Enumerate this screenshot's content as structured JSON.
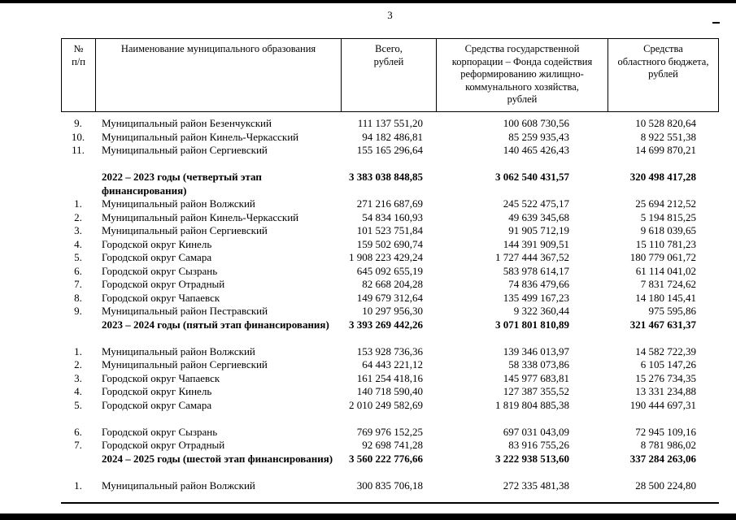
{
  "page": {
    "number": "3"
  },
  "table": {
    "headers": [
      "№\nп/п",
      "Наименование муниципального образования",
      "Всего,\nрублей",
      "Средства государственной\nкорпорации – Фонда содействия\nреформированию жилищно-\nкоммунального хозяйства,\nрублей",
      "Средства\nобластного бюджета,\nрублей"
    ],
    "rows": [
      {
        "type": "data",
        "num": "9.",
        "name": "Муниципальный район Безенчукский",
        "total": "111 137 551,20",
        "fund": "100 608 730,56",
        "budget": "10 528 820,64"
      },
      {
        "type": "data",
        "num": "10.",
        "name": "Муниципальный район Кинель-Черкасский",
        "total": "94 182 486,81",
        "fund": "85 259 935,43",
        "budget": "8 922 551,38"
      },
      {
        "type": "data",
        "num": "11.",
        "name": "Муниципальный район Сергиевский",
        "total": "155 165 296,64",
        "fund": "140 465 426,43",
        "budget": "14 699 870,21"
      },
      {
        "type": "blank"
      },
      {
        "type": "subtotal",
        "num": "",
        "name": "2022 – 2023 годы (четвертый этап финансирования)",
        "total": "3 383 038 848,85",
        "fund": "3 062 540 431,57",
        "budget": "320 498 417,28"
      },
      {
        "type": "data",
        "num": "1.",
        "name": "Муниципальный район Волжский",
        "total": "271 216 687,69",
        "fund": "245 522 475,17",
        "budget": "25 694 212,52"
      },
      {
        "type": "data",
        "num": "2.",
        "name": "Муниципальный район Кинель-Черкасский",
        "total": "54 834 160,93",
        "fund": "49 639 345,68",
        "budget": "5 194 815,25"
      },
      {
        "type": "data",
        "num": "3.",
        "name": "Муниципальный район Сергиевский",
        "total": "101 523 751,84",
        "fund": "91 905 712,19",
        "budget": "9 618 039,65"
      },
      {
        "type": "data",
        "num": "4.",
        "name": "Городской округ Кинель",
        "total": "159 502 690,74",
        "fund": "144 391 909,51",
        "budget": "15 110 781,23"
      },
      {
        "type": "data",
        "num": "5.",
        "name": "Городской округ Самара",
        "total": "1 908 223 429,24",
        "fund": "1 727 444 367,52",
        "budget": "180 779 061,72"
      },
      {
        "type": "data",
        "num": "6.",
        "name": "Городской округ Сызрань",
        "total": "645 092 655,19",
        "fund": "583 978 614,17",
        "budget": "61 114 041,02"
      },
      {
        "type": "data",
        "num": "7.",
        "name": "Городской округ Отрадный",
        "total": "82 668 204,28",
        "fund": "74 836 479,66",
        "budget": "7 831 724,62"
      },
      {
        "type": "data",
        "num": "8.",
        "name": "Городской округ Чапаевск",
        "total": "149 679 312,64",
        "fund": "135 499 167,23",
        "budget": "14 180 145,41"
      },
      {
        "type": "data",
        "num": "9.",
        "name": "Муниципальный район Пестравский",
        "total": "10 297 956,30",
        "fund": "9 322 360,44",
        "budget": "975 595,86"
      },
      {
        "type": "subtotal",
        "num": "",
        "name": "2023 – 2024 годы (пятый этап финансирования)",
        "total": "3 393 269 442,26",
        "fund": "3 071 801 810,89",
        "budget": "321 467 631,37"
      },
      {
        "type": "blank"
      },
      {
        "type": "data",
        "num": "1.",
        "name": "Муниципальный район Волжский",
        "total": "153 928 736,36",
        "fund": "139 346 013,97",
        "budget": "14 582 722,39"
      },
      {
        "type": "data",
        "num": "2.",
        "name": "Муниципальный район Сергиевский",
        "total": "64 443 221,12",
        "fund": "58 338 073,86",
        "budget": "6 105 147,26"
      },
      {
        "type": "data",
        "num": "3.",
        "name": "Городской округ Чапаевск",
        "total": "161 254 418,16",
        "fund": "145 977 683,81",
        "budget": "15 276 734,35"
      },
      {
        "type": "data",
        "num": "4.",
        "name": "Городской округ Кинель",
        "total": "140 718 590,40",
        "fund": "127 387 355,52",
        "budget": "13 331 234,88"
      },
      {
        "type": "data",
        "num": "5.",
        "name": "Городской округ Самара",
        "total": "2 010 249 582,69",
        "fund": "1 819 804 885,38",
        "budget": "190 444 697,31"
      },
      {
        "type": "blank"
      },
      {
        "type": "data",
        "num": "6.",
        "name": "Городской округ Сызрань",
        "total": "769 976 152,25",
        "fund": "697 031 043,09",
        "budget": "72 945 109,16"
      },
      {
        "type": "data",
        "num": "7.",
        "name": "Городской округ Отрадный",
        "total": "92 698 741,28",
        "fund": "83 916 755,26",
        "budget": "8 781 986,02"
      },
      {
        "type": "subtotal",
        "num": "",
        "name": "2024 – 2025 годы (шестой этап финансирования)",
        "total": "3 560 222 776,66",
        "fund": "3 222 938 513,60",
        "budget": "337 284 263,06"
      },
      {
        "type": "blank"
      },
      {
        "type": "data",
        "num": "1.",
        "name": "Муниципальный район Волжский",
        "total": "300 835 706,18",
        "fund": "272 335 481,38",
        "budget": "28 500 224,80"
      }
    ]
  }
}
